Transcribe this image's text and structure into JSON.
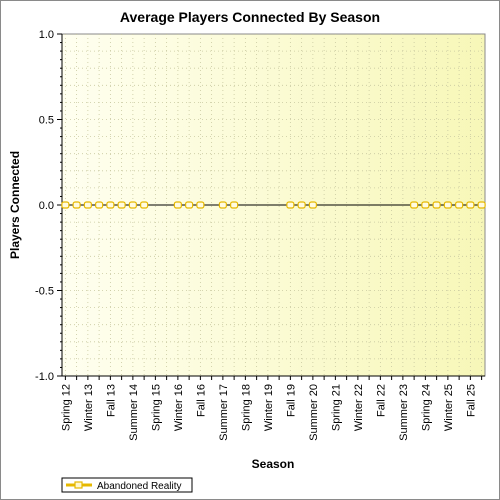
{
  "chart_data": {
    "type": "line",
    "title": "Average Players Connected By Season",
    "xlabel": "Season",
    "ylabel": "Players Connected",
    "ylim": [
      -1.0,
      1.0
    ],
    "yticks": [
      "1.0",
      "0.5",
      "0.0",
      "-0.5",
      "-1.0"
    ],
    "ytick_values": [
      1.0,
      0.5,
      0.0,
      -0.5,
      -1.0
    ],
    "categories": [
      "Spring 12",
      "Summer 12",
      "Winter 13",
      "Spring 13",
      "Fall 13",
      "Winter 14",
      "Summer 14",
      "Fall 14",
      "Spring 15",
      "Summer 15",
      "Winter 16",
      "Spring 16",
      "Fall 16",
      "Winter 17",
      "Summer 17",
      "Fall 17",
      "Spring 18",
      "Summer 18",
      "Winter 19",
      "Spring 19",
      "Fall 19",
      "Winter 20",
      "Summer 20",
      "Fall 20",
      "Spring 21",
      "Summer 21",
      "Winter 22",
      "Spring 22",
      "Fall 22",
      "Winter 23",
      "Summer 23",
      "Fall 23",
      "Spring 24",
      "Summer 24",
      "Winter 25",
      "Spring 25",
      "Fall 25",
      "Winter 26"
    ],
    "visible_tick_labels": [
      "Spring 12",
      "Winter 13",
      "Fall 13",
      "Summer 14",
      "Spring 15",
      "Winter 16",
      "Fall 16",
      "Summer 17",
      "Spring 18",
      "Winter 19",
      "Fall 19",
      "Summer 20",
      "Spring 21",
      "Winter 22",
      "Fall 22",
      "Summer 23",
      "Spring 24",
      "Winter 25",
      "Fall 25"
    ],
    "series": [
      {
        "name": "Abandoned Reality",
        "color": "#e6b800",
        "points": [
          {
            "x": "Spring 12",
            "y": 0.0
          },
          {
            "x": "Summer 12",
            "y": 0.0
          },
          {
            "x": "Winter 13",
            "y": 0.0
          },
          {
            "x": "Spring 13",
            "y": 0.0
          },
          {
            "x": "Fall 13",
            "y": 0.0
          },
          {
            "x": "Winter 14",
            "y": 0.0
          },
          {
            "x": "Summer 14",
            "y": 0.0
          },
          {
            "x": "Fall 14",
            "y": 0.0
          },
          {
            "x": "Winter 16",
            "y": 0.0
          },
          {
            "x": "Spring 16",
            "y": 0.0
          },
          {
            "x": "Fall 16",
            "y": 0.0
          },
          {
            "x": "Summer 17",
            "y": 0.0
          },
          {
            "x": "Fall 17",
            "y": 0.0
          },
          {
            "x": "Fall 19",
            "y": 0.0
          },
          {
            "x": "Winter 20",
            "y": 0.0
          },
          {
            "x": "Summer 20",
            "y": 0.0
          },
          {
            "x": "Fall 23",
            "y": 0.0
          },
          {
            "x": "Spring 24",
            "y": 0.0
          },
          {
            "x": "Summer 24",
            "y": 0.0
          },
          {
            "x": "Winter 25",
            "y": 0.0
          },
          {
            "x": "Spring 25",
            "y": 0.0
          },
          {
            "x": "Fall 25",
            "y": 0.0
          },
          {
            "x": "Winter 26",
            "y": 0.0
          }
        ]
      }
    ],
    "grid": true,
    "legend_position": "bottom-left",
    "background_gradient": [
      "#fffff0",
      "#f7f7b8"
    ]
  }
}
